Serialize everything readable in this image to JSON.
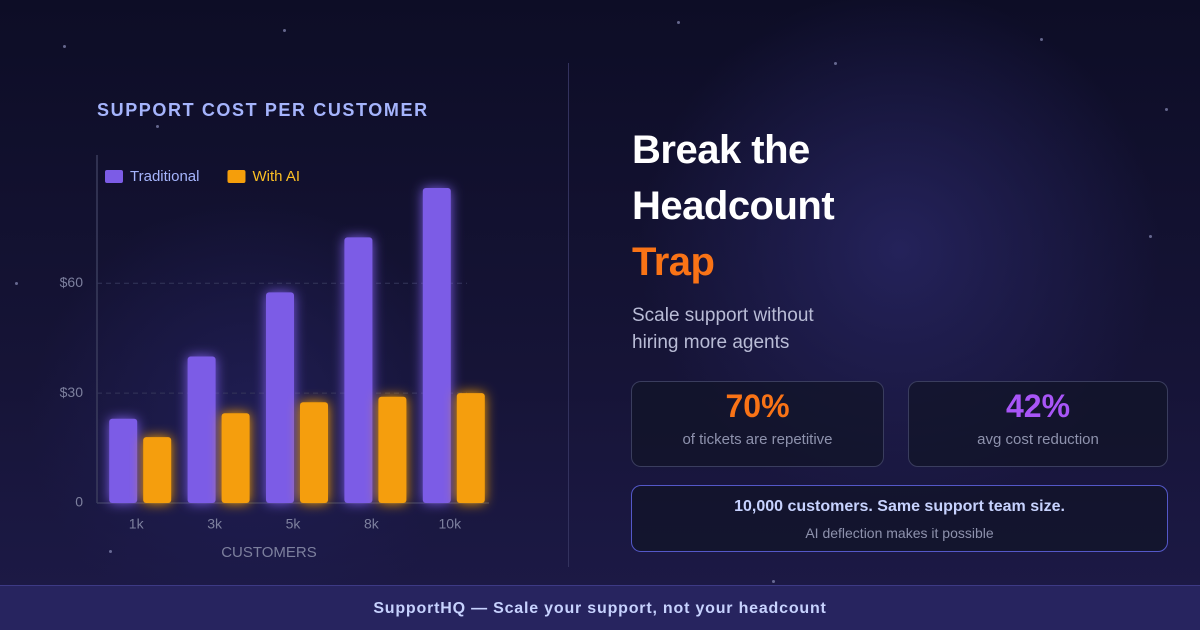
{
  "chart_data": {
    "type": "bar",
    "title": "SUPPORT COST PER CUSTOMER",
    "x_label": "CUSTOMERS",
    "categories": [
      "1k",
      "3k",
      "5k",
      "8k",
      "10k"
    ],
    "series": [
      {
        "name": "Traditional",
        "color": "#7c5ce6",
        "values": [
          23,
          40,
          57.5,
          72.5,
          86
        ]
      },
      {
        "name": "With AI",
        "color": "#f59e0b",
        "values": [
          18,
          24.5,
          27.5,
          29,
          30
        ]
      }
    ],
    "ylim": [
      0,
      95
    ],
    "yticks": [
      0,
      {
        "value": 30,
        "label": "$30"
      },
      {
        "value": 60,
        "label": "$60"
      }
    ],
    "grid": true,
    "legend": "top-left"
  },
  "headline": {
    "lines": [
      "Break the",
      "Headcount",
      "Trap"
    ]
  },
  "subtitle": "Scale support without hiring more agents",
  "stats": [
    {
      "value": "70%",
      "label": "of tickets are repetitive"
    },
    {
      "value": "42%",
      "label": "avg cost reduction"
    }
  ],
  "callout": {
    "title": "10,000 customers. Same support team size.",
    "text": "AI deflection makes it possible"
  },
  "footer": "SupportHQ — Scale your support, not your headcount"
}
